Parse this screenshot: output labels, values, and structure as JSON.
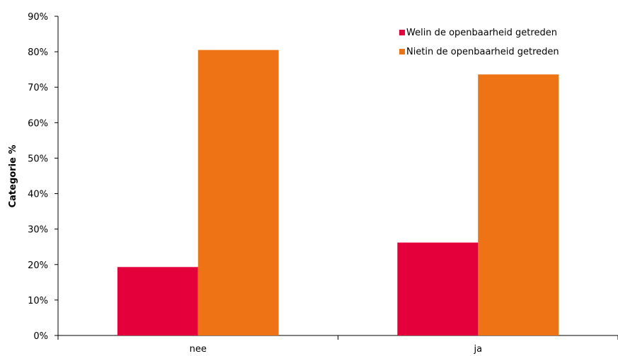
{
  "chart_data": {
    "type": "bar",
    "categories": [
      "nee",
      "ja"
    ],
    "series": [
      {
        "name": "Welin de openbaarheid getreden",
        "values": [
          19.3,
          26.2
        ],
        "color": "#e4003b"
      },
      {
        "name": "Nietin de openbaarheid getreden",
        "values": [
          80.5,
          73.6
        ],
        "color": "#ee7314"
      }
    ],
    "ylabel": "Categorie %",
    "xlabel": "",
    "ylim": [
      0,
      90
    ],
    "yticks": [
      "0%",
      "10%",
      "20%",
      "30%",
      "40%",
      "50%",
      "60%",
      "70%",
      "80%",
      "90%"
    ],
    "grid": false,
    "legend_position": "top-right"
  }
}
